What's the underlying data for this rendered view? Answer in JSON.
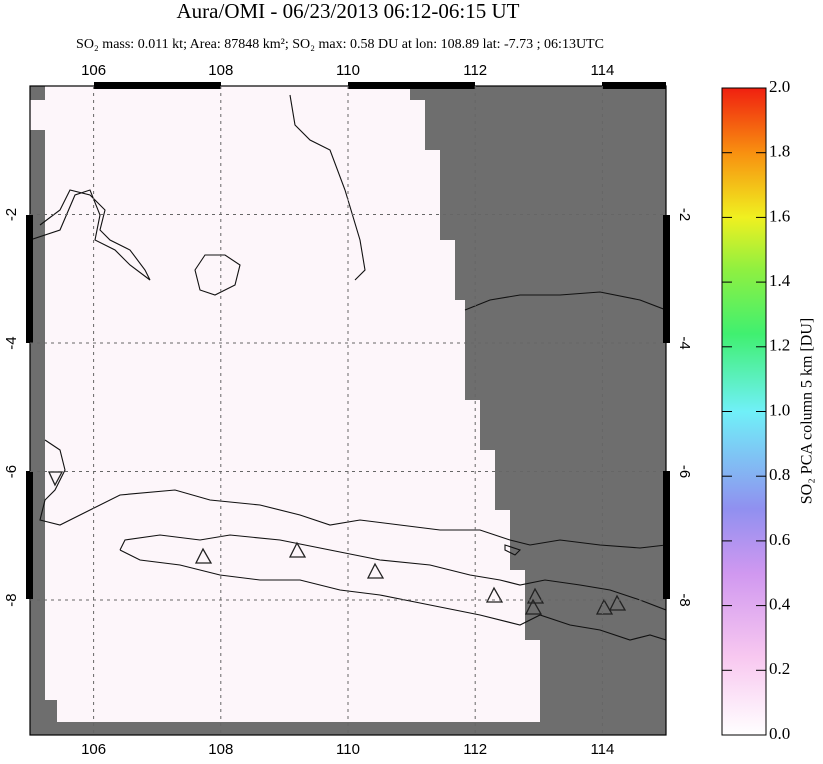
{
  "title": "Aura/OMI - 06/23/2013 06:12-06:15 UT",
  "subtitle": "SO₂ mass: 0.011 kt; Area: 87848 km²; SO₂ max: 0.58 DU at lon: 108.89 lat: -7.73 ; 06:13UTC",
  "map": {
    "xlim": [
      105,
      115
    ],
    "ylim": [
      -10.1,
      0
    ],
    "xticks": [
      106,
      108,
      110,
      112,
      114
    ],
    "yticks": [
      -2,
      -4,
      -6,
      -8
    ],
    "grid": true
  },
  "colorbar": {
    "label": "SO₂ PCA column 5 km [DU]",
    "lim": [
      0,
      2
    ],
    "ticks": [
      {
        "value": 0,
        "label": "0.0"
      },
      0.2,
      0.4,
      0.6,
      0.8,
      {
        "value": 1,
        "label": "1.0"
      },
      1.2,
      1.4,
      1.6,
      1.8,
      {
        "value": 2,
        "label": "2.0"
      }
    ]
  }
}
